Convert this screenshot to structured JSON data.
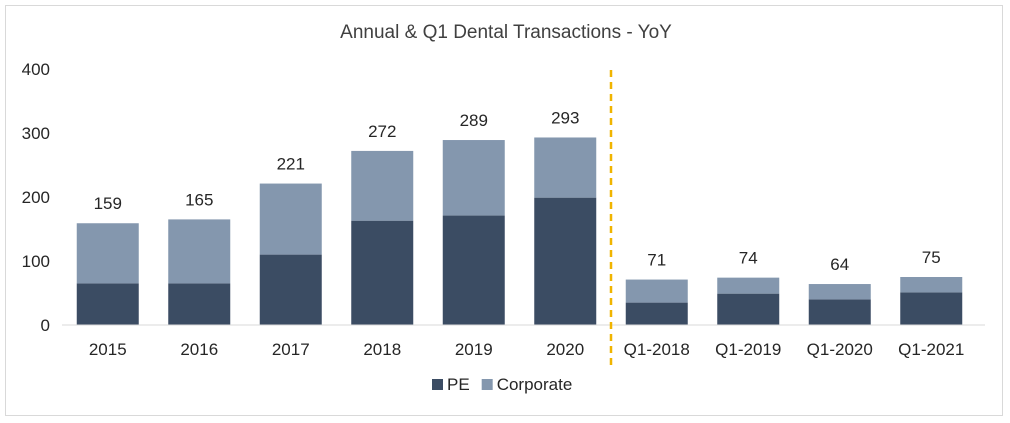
{
  "chart_data": {
    "type": "bar",
    "stacked": true,
    "title": "Annual & Q1 Dental Transactions - YoY",
    "xlabel": "",
    "ylabel": "",
    "ylim": [
      0,
      400
    ],
    "yticks": [
      0,
      100,
      200,
      300,
      400
    ],
    "categories": [
      "2015",
      "2016",
      "2017",
      "2018",
      "2019",
      "2020",
      "Q1-2018",
      "Q1-2019",
      "Q1-2020",
      "Q1-2021"
    ],
    "series": [
      {
        "name": "PE",
        "color": "#3b4c63",
        "values": [
          65,
          65,
          110,
          163,
          171,
          199,
          35,
          49,
          40,
          51
        ]
      },
      {
        "name": "Corporate",
        "color": "#8497ae",
        "values": [
          94,
          100,
          111,
          109,
          118,
          94,
          36,
          25,
          24,
          24
        ]
      }
    ],
    "totals": [
      159,
      165,
      221,
      272,
      289,
      293,
      71,
      74,
      64,
      75
    ],
    "divider": {
      "after_category_index": 5,
      "color": "#f0b400",
      "style": "dashed"
    },
    "grid": false,
    "legend": {
      "position": "bottom"
    }
  }
}
